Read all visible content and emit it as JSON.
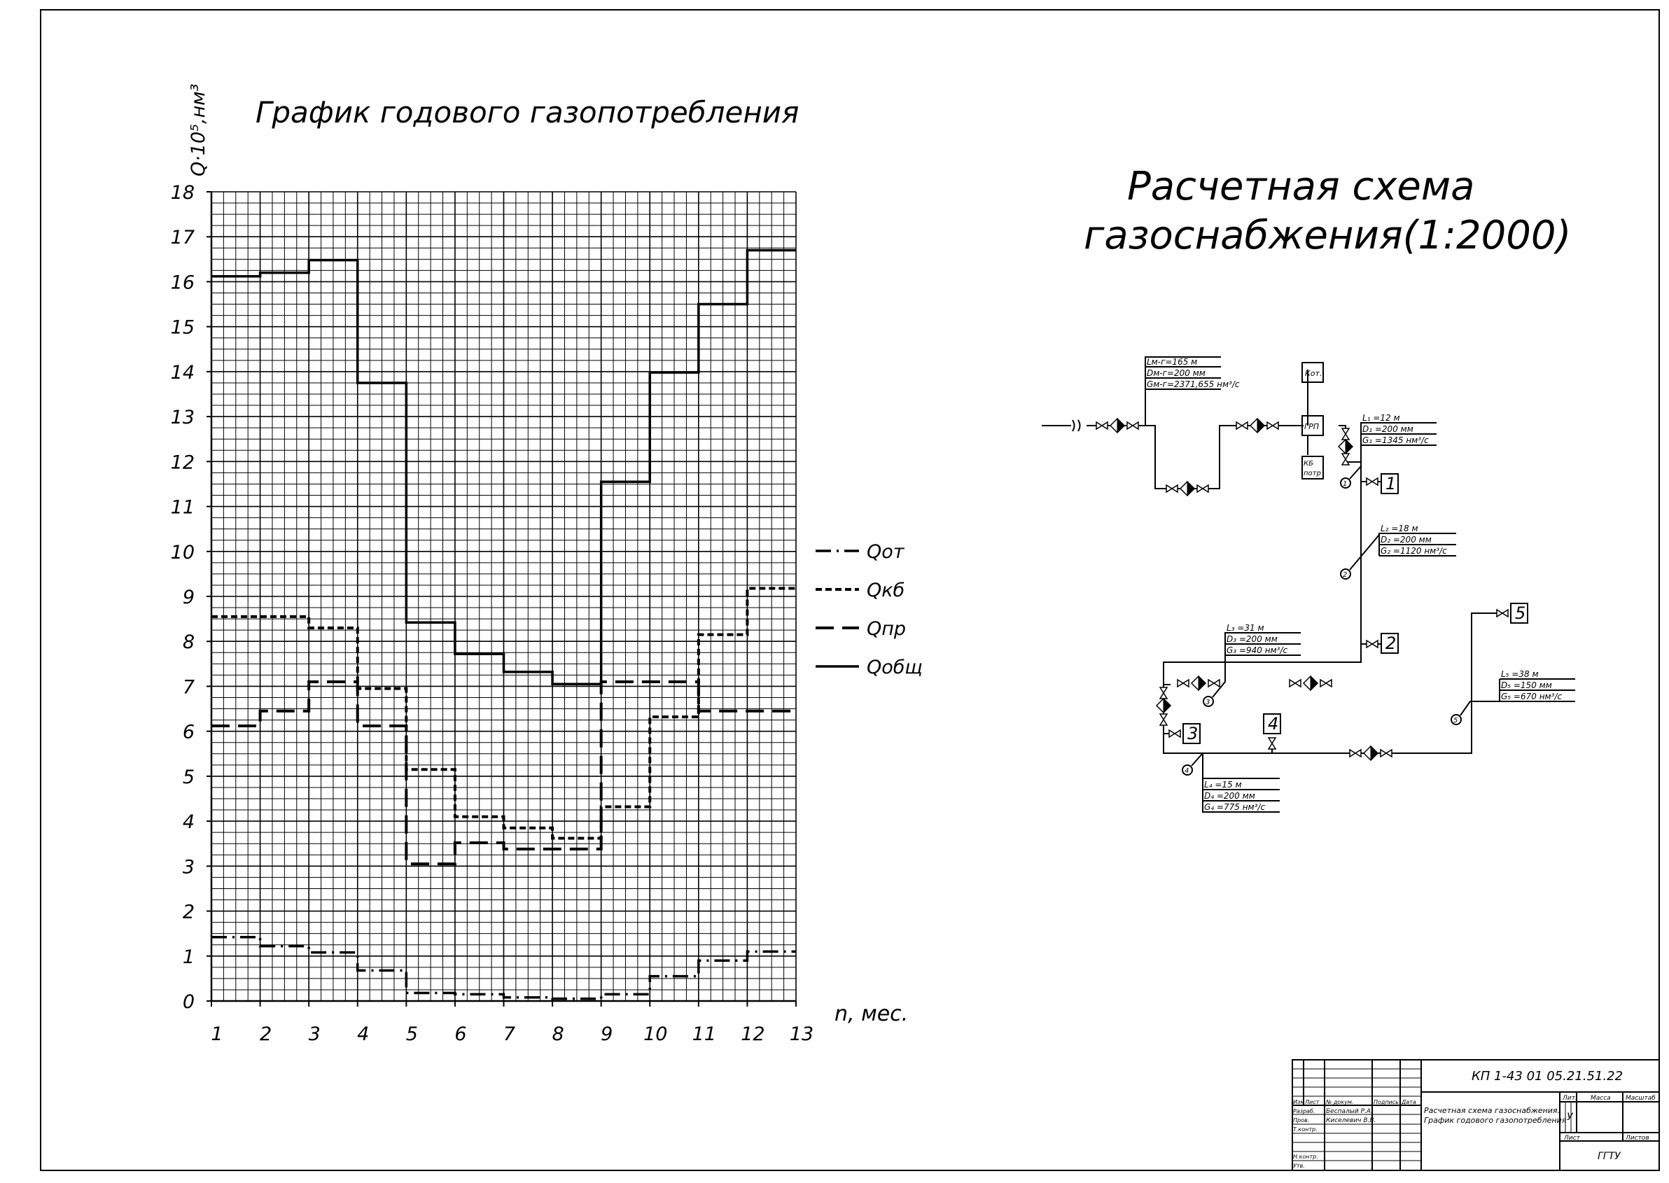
{
  "chart_data": {
    "type": "line",
    "title": "График годового газопотребления",
    "ylabel": "Q·10⁵,нм³",
    "xlabel": "n, мес.",
    "x_ticks": [
      1,
      2,
      3,
      4,
      5,
      6,
      7,
      8,
      9,
      10,
      11,
      12,
      13
    ],
    "y_ticks": [
      0,
      1,
      2,
      3,
      4,
      5,
      6,
      7,
      8,
      9,
      10,
      11,
      12,
      13,
      14,
      15,
      16,
      17,
      18
    ],
    "xlim": [
      1,
      13
    ],
    "ylim": [
      0,
      18
    ],
    "grid": true,
    "legend_position": "right",
    "series": [
      {
        "name": "Qот",
        "style": "dashdot",
        "months": [
          1,
          2,
          3,
          4,
          5,
          6,
          7,
          8,
          9,
          10,
          11,
          12
        ],
        "values": [
          1.42,
          1.22,
          1.08,
          0.68,
          0.18,
          0.15,
          0.08,
          0.05,
          0.15,
          0.55,
          0.9,
          1.1
        ]
      },
      {
        "name": "Qкб",
        "style": "dashed",
        "months": [
          1,
          2,
          3,
          4,
          5,
          6,
          7,
          8,
          9,
          10,
          11,
          12
        ],
        "values": [
          8.55,
          8.55,
          8.3,
          6.95,
          5.15,
          4.1,
          3.85,
          3.62,
          4.32,
          6.32,
          8.15,
          9.18
        ]
      },
      {
        "name": "Qпр",
        "style": "longdash",
        "months": [
          1,
          2,
          3,
          4,
          5,
          6,
          7,
          8,
          9,
          10,
          11,
          12
        ],
        "values": [
          6.12,
          6.45,
          7.1,
          6.12,
          3.05,
          3.52,
          3.38,
          3.38,
          7.1,
          7.1,
          6.45,
          6.45
        ]
      },
      {
        "name": "Qобщ",
        "style": "solid",
        "months": [
          1,
          2,
          3,
          4,
          5,
          6,
          7,
          8,
          9,
          10,
          11,
          12
        ],
        "values": [
          16.12,
          16.2,
          16.48,
          13.75,
          8.42,
          7.72,
          7.32,
          7.05,
          11.55,
          13.98,
          15.5,
          16.7
        ]
      }
    ]
  },
  "scheme": {
    "title_line1": "Расчетная схема",
    "title_line2": "газоснабжения(1:2000)",
    "main_leader": {
      "l1": "Lм-г=165 м",
      "l2": "Dм-г=200 мм",
      "l3": "Gм-г=2371,655 нм³/с"
    },
    "box_kot": "Кот.",
    "box_grp": "ГРП",
    "box_kb_1": "КБ",
    "box_kb_2": "потр",
    "consumers": [
      "1",
      "2",
      "3",
      "4",
      "5"
    ],
    "nodes": [
      "1",
      "2",
      "3",
      "4",
      "5"
    ],
    "leaders": [
      {
        "l1": "L₁ =12  м",
        "l2": "D₁ =200 мм",
        "l3": "G₁ =1345    нм³/с"
      },
      {
        "l1": "L₂ =18  м",
        "l2": "D₂ =200 мм",
        "l3": "G₂ =1120    нм³/с"
      },
      {
        "l1": "L₃ =31  м",
        "l2": "D₃ =200 мм",
        "l3": "G₃ =940    нм³/с"
      },
      {
        "l1": "L₄ =15  м",
        "l2": "D₄ =200 мм",
        "l3": "G₄ =775    нм³/с"
      },
      {
        "l1": "L₅ =38  м",
        "l2": "D₅ =150 мм",
        "l3": "G₅ =670    нм³/с"
      }
    ]
  },
  "title_block": {
    "doc_code": "КП 1-43 01 05.21.51.22",
    "name_line1": "Расчетная схема газоснабжения.",
    "name_line2": "График годового газопотребления",
    "hdr_izm": "Изм",
    "hdr_list": "Лист",
    "hdr_ndoc": "№ докум.",
    "hdr_podp": "Подпись",
    "hdr_data": "Дата",
    "row_razrab": "Разраб.",
    "razrab_name": "Беспалый Р.А.",
    "row_prov": "Пров.",
    "prov_name": "Киселевич В.В.",
    "row_tkontr": "Т.контр.",
    "row_nkontr": "Н.контр.",
    "row_utv": "Утв.",
    "lit": "Лит.",
    "massa": "Масса",
    "masshtab": "Масштаб",
    "lit_value": "У",
    "list": "Лист",
    "listov": "Листов",
    "org": "ГГТУ"
  }
}
